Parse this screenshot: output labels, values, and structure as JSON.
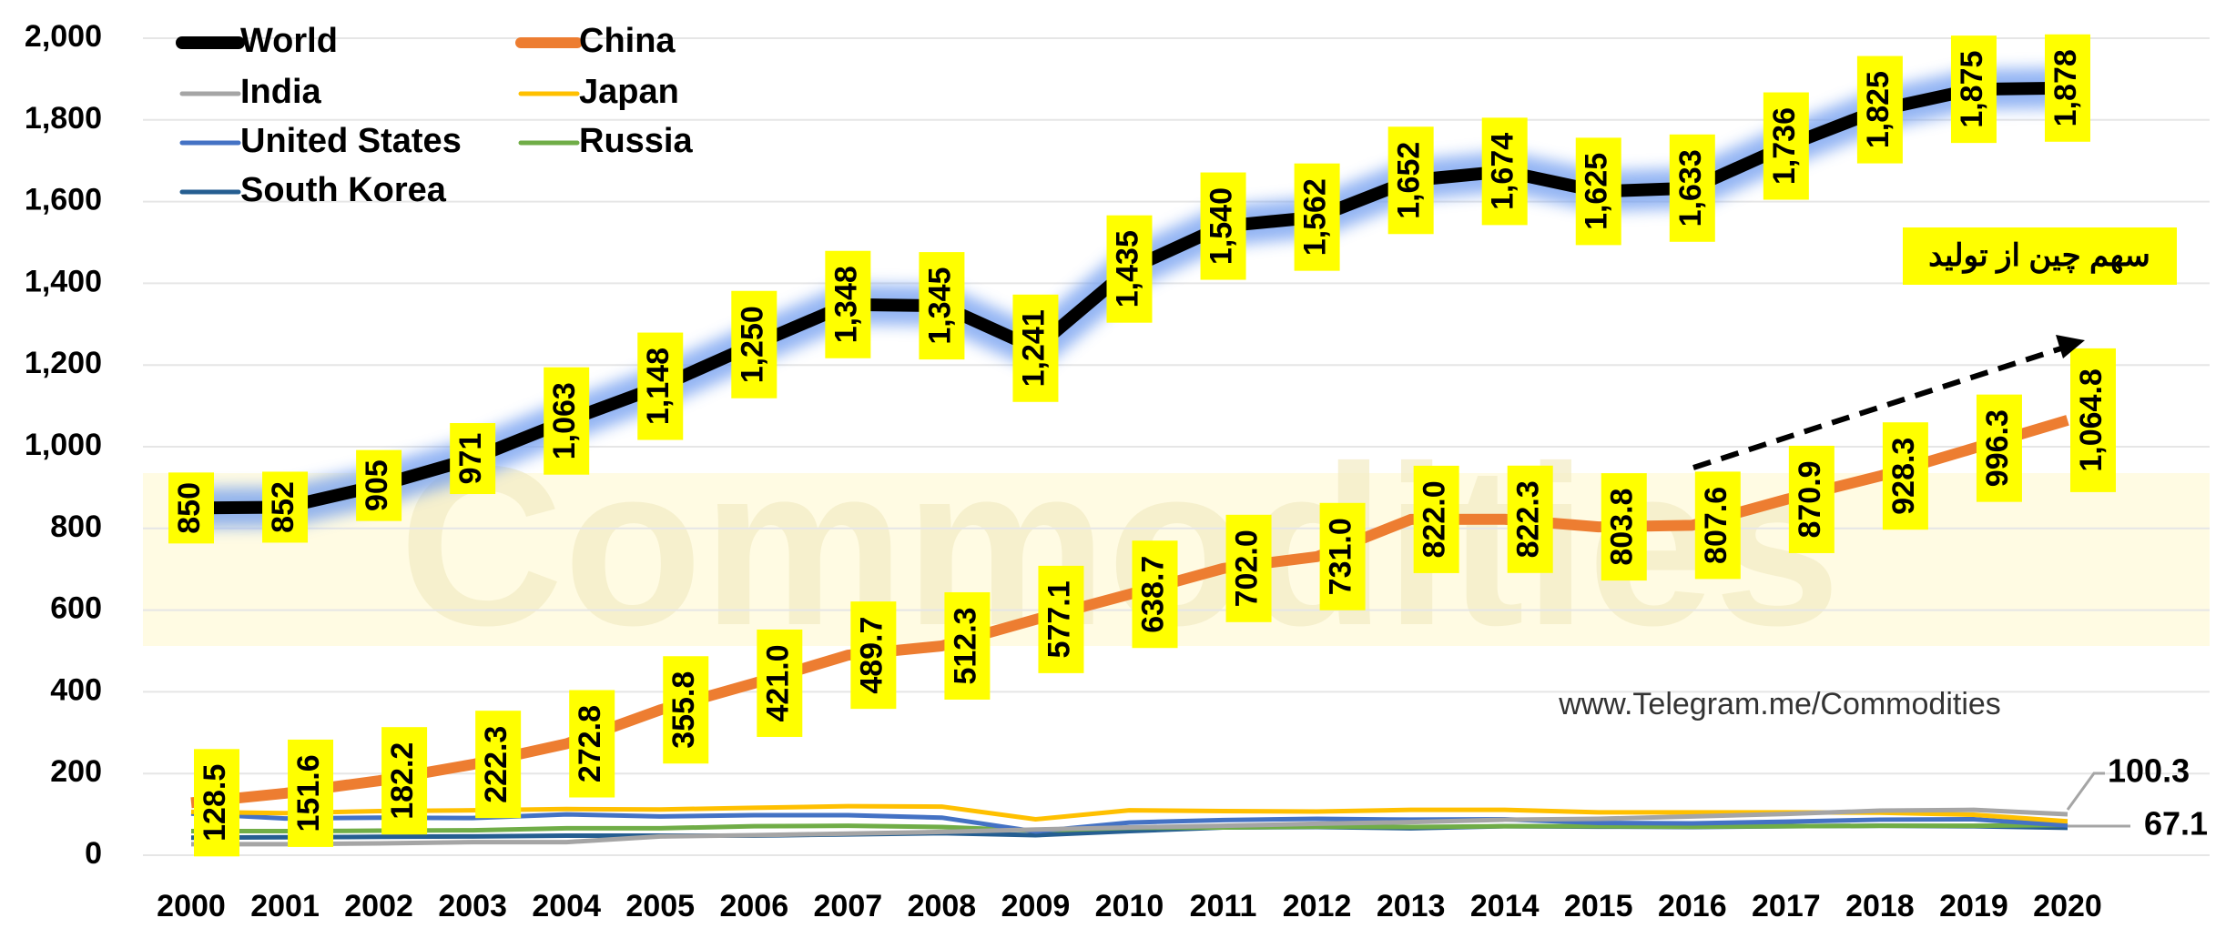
{
  "chart_data": {
    "type": "line",
    "categories": [
      "2000",
      "2001",
      "2002",
      "2003",
      "2004",
      "2005",
      "2006",
      "2007",
      "2008",
      "2009",
      "2010",
      "2011",
      "2012",
      "2013",
      "2014",
      "2015",
      "2016",
      "2017",
      "2018",
      "2019",
      "2020"
    ],
    "series": [
      {
        "name": "World",
        "color": "#000000",
        "values": [
          850,
          852,
          905,
          971,
          1063,
          1148,
          1250,
          1348,
          1345,
          1241,
          1435,
          1540,
          1562,
          1652,
          1674,
          1625,
          1633,
          1736,
          1825,
          1875,
          1878
        ],
        "value_labels": [
          "850",
          "852",
          "905",
          "971",
          "1,063",
          "1,148",
          "1,250",
          "1,348",
          "1,345",
          "1,241",
          "1,435",
          "1,540",
          "1,562",
          "1,652",
          "1,674",
          "1,625",
          "1,633",
          "1,736",
          "1,825",
          "1,875",
          "1,878"
        ]
      },
      {
        "name": "China",
        "color": "#ed7d31",
        "values": [
          128.5,
          151.6,
          182.2,
          222.3,
          272.8,
          355.8,
          421.0,
          489.7,
          512.3,
          577.1,
          638.7,
          702.0,
          731.0,
          822.0,
          822.3,
          803.8,
          807.6,
          870.9,
          928.3,
          996.3,
          1064.8
        ],
        "value_labels": [
          "128.5",
          "151.6",
          "182.2",
          "222.3",
          "272.8",
          "355.8",
          "421.0",
          "489.7",
          "512.3",
          "577.1",
          "638.7",
          "702.0",
          "731.0",
          "822.0",
          "822.3",
          "803.8",
          "807.6",
          "870.9",
          "928.3",
          "996.3",
          "1,064.8"
        ]
      },
      {
        "name": "India",
        "color": "#a5a5a5",
        "values": [
          27,
          27,
          29,
          32,
          32,
          46,
          49,
          53,
          57,
          63,
          68,
          72,
          77,
          81,
          87,
          89,
          95,
          101,
          109,
          111,
          100.3
        ]
      },
      {
        "name": "Japan",
        "color": "#ffc000",
        "values": [
          106,
          103,
          108,
          110,
          113,
          112,
          116,
          120,
          119,
          88,
          110,
          108,
          107,
          111,
          111,
          105,
          105,
          105,
          104,
          99,
          83
        ]
      },
      {
        "name": "United States",
        "color": "#4472c4",
        "values": [
          102,
          90,
          92,
          91,
          100,
          95,
          98,
          98,
          92,
          58,
          80,
          86,
          89,
          87,
          88,
          79,
          78,
          82,
          87,
          88,
          73
        ]
      },
      {
        "name": "Russia",
        "color": "#70ad47",
        "values": [
          59,
          59,
          60,
          61,
          66,
          66,
          71,
          72,
          69,
          60,
          67,
          68,
          70,
          69,
          71,
          71,
          70,
          71,
          72,
          72,
          74
        ]
      },
      {
        "name": "South Korea",
        "color": "#255e91",
        "values": [
          43,
          44,
          45,
          46,
          48,
          48,
          48,
          51,
          54,
          49,
          59,
          68,
          69,
          66,
          71,
          70,
          69,
          71,
          72,
          71,
          67.1
        ]
      }
    ],
    "ylim": [
      0,
      2000
    ],
    "yticks": [
      0,
      200,
      400,
      600,
      800,
      {
        "value": 1000,
        "label": "1,000"
      },
      {
        "value": 1200,
        "label": "1,200"
      },
      {
        "value": 1400,
        "label": "1,400"
      },
      {
        "value": 1600,
        "label": "1,600"
      },
      {
        "value": 1800,
        "label": "1,800"
      },
      {
        "value": 2000,
        "label": "2,000"
      }
    ],
    "grid": true,
    "legend": "top-left",
    "annotations": [
      "سهم چین از تولید",
      "www.Telegram.me/Commodities",
      "Commodities"
    ]
  }
}
